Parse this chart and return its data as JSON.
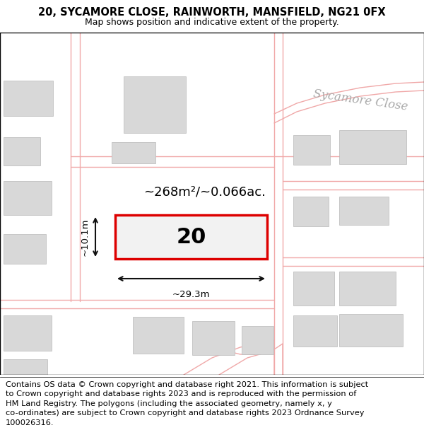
{
  "title": "20, SYCAMORE CLOSE, RAINWORTH, MANSFIELD, NG21 0FX",
  "subtitle": "Map shows position and indicative extent of the property.",
  "footer_line1": "Contains OS data © Crown copyright and database right 2021. This information is subject",
  "footer_line2": "to Crown copyright and database rights 2023 and is reproduced with the permission of",
  "footer_line3": "HM Land Registry. The polygons (including the associated geometry, namely x, y",
  "footer_line4": "co-ordinates) are subject to Crown copyright and database rights 2023 Ordnance Survey",
  "footer_line5": "100026316.",
  "area_label": "~268m²/~0.066ac.",
  "plot_number": "20",
  "width_label": "~29.3m",
  "height_label": "~10.1m",
  "street_label": "Sycamore Close",
  "plot_edge_color": "#dd0000",
  "plot_fill_color": "#f2f2f2",
  "building_fill": "#d8d8d8",
  "building_edge": "#b8b8b8",
  "road_color": "#f0a8a8",
  "bg_color": "#ffffff",
  "title_fontsize": 10.5,
  "subtitle_fontsize": 9.0,
  "footer_fontsize": 8.2,
  "area_fontsize": 13.0,
  "number_fontsize": 22,
  "dim_fontsize": 9.5,
  "street_fontsize": 12
}
